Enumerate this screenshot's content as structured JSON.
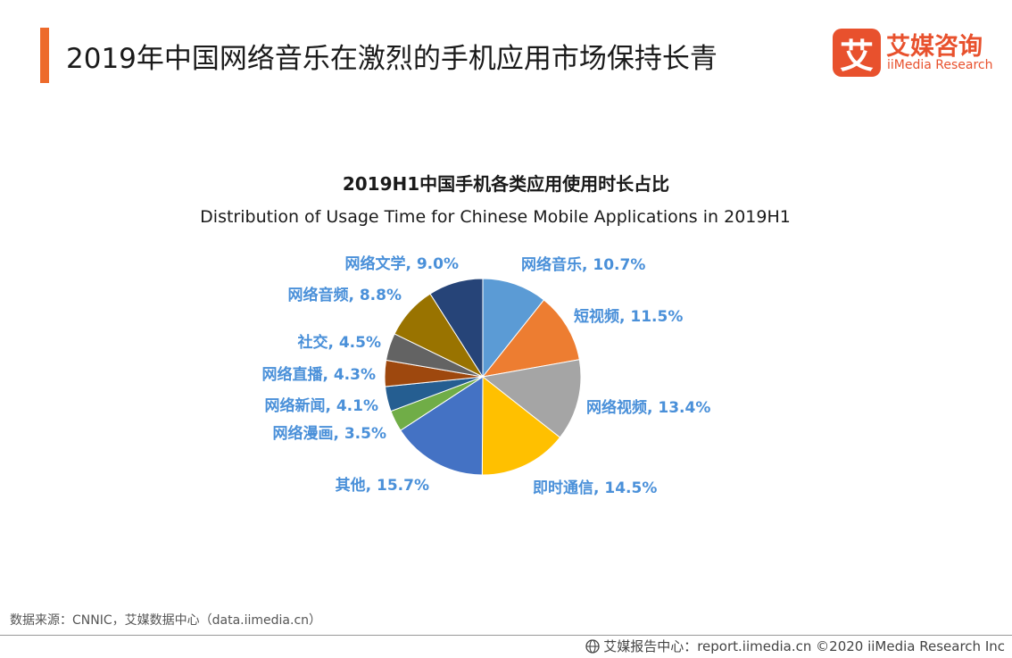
{
  "header": {
    "title": "2019年中国网络音乐在激烈的手机应用市场保持长青"
  },
  "logo": {
    "glyph": "艾",
    "cn": "艾媒咨询",
    "en": "iiMedia Research"
  },
  "chart_data": {
    "type": "pie",
    "title": "2019H1中国手机各类应用使用时长占比",
    "subtitle": "Distribution of Usage Time for Chinese Mobile Applications in 2019H1",
    "slices": [
      {
        "name": "网络音乐",
        "value": 10.7,
        "label": "网络音乐, 10.7%",
        "color": "#5b9bd5"
      },
      {
        "name": "短视频",
        "value": 11.5,
        "label": "短视频, 11.5%",
        "color": "#ed7d31"
      },
      {
        "name": "网络视频",
        "value": 13.4,
        "label": "网络视频, 13.4%",
        "color": "#a5a5a5"
      },
      {
        "name": "即时通信",
        "value": 14.5,
        "label": "即时通信, 14.5%",
        "color": "#ffc000"
      },
      {
        "name": "其他",
        "value": 15.7,
        "label": "其他, 15.7%",
        "color": "#4472c4"
      },
      {
        "name": "网络漫画",
        "value": 3.5,
        "label": "网络漫画, 3.5%",
        "color": "#70ad47"
      },
      {
        "name": "网络新闻",
        "value": 4.1,
        "label": "网络新闻, 4.1%",
        "color": "#255e91"
      },
      {
        "name": "网络直播",
        "value": 4.3,
        "label": "网络直播, 4.3%",
        "color": "#9e480e"
      },
      {
        "name": "社交",
        "value": 4.5,
        "label": "社交, 4.5%",
        "color": "#636363"
      },
      {
        "name": "网络音频",
        "value": 8.8,
        "label": "网络音频, 8.8%",
        "color": "#997300"
      },
      {
        "name": "网络文学",
        "value": 9.0,
        "label": "网络文学, 9.0%",
        "color": "#264478"
      }
    ]
  },
  "source": "数据来源：CNNIC，艾媒数据中心（data.iimedia.cn）",
  "footer": {
    "icon": "globe-icon",
    "text": "艾媒报告中心：report.iimedia.cn  ©2020  iiMedia Research  Inc"
  }
}
